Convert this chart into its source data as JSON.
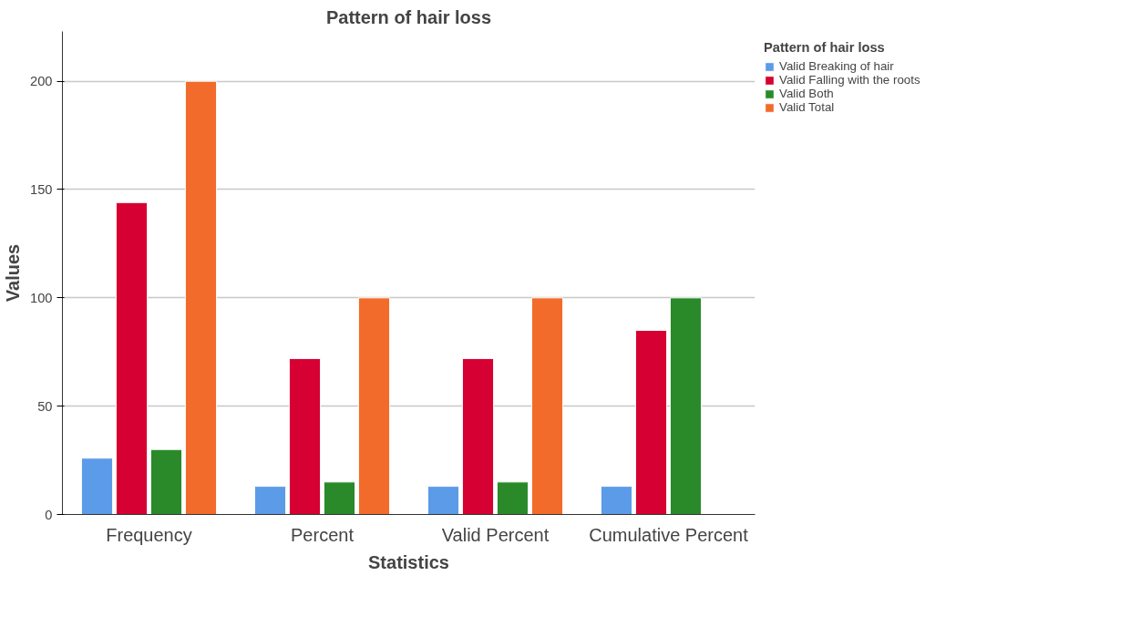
{
  "chart_data": {
    "type": "bar",
    "title": "Pattern of hair loss",
    "xlabel": "Statistics",
    "ylabel": "Values",
    "legend_title": "Pattern of hair loss",
    "categories": [
      "Frequency",
      "Percent",
      "Valid Percent",
      "Cumulative Percent"
    ],
    "series": [
      {
        "name": "Valid Breaking of hair",
        "color": "#5b9be8",
        "values": [
          26,
          13,
          13,
          13
        ]
      },
      {
        "name": "Valid Falling with the roots",
        "color": "#d60032",
        "values": [
          144,
          72,
          72,
          85
        ]
      },
      {
        "name": "Valid Both",
        "color": "#2a8a2a",
        "values": [
          30,
          15,
          15,
          100
        ]
      },
      {
        "name": "Valid Total",
        "color": "#f26b2a",
        "values": [
          200,
          100,
          100,
          null
        ]
      }
    ],
    "ylim": [
      0,
      223
    ],
    "yticks": [
      0,
      50,
      100,
      150,
      200
    ],
    "grid": "y",
    "legend": "top right"
  }
}
